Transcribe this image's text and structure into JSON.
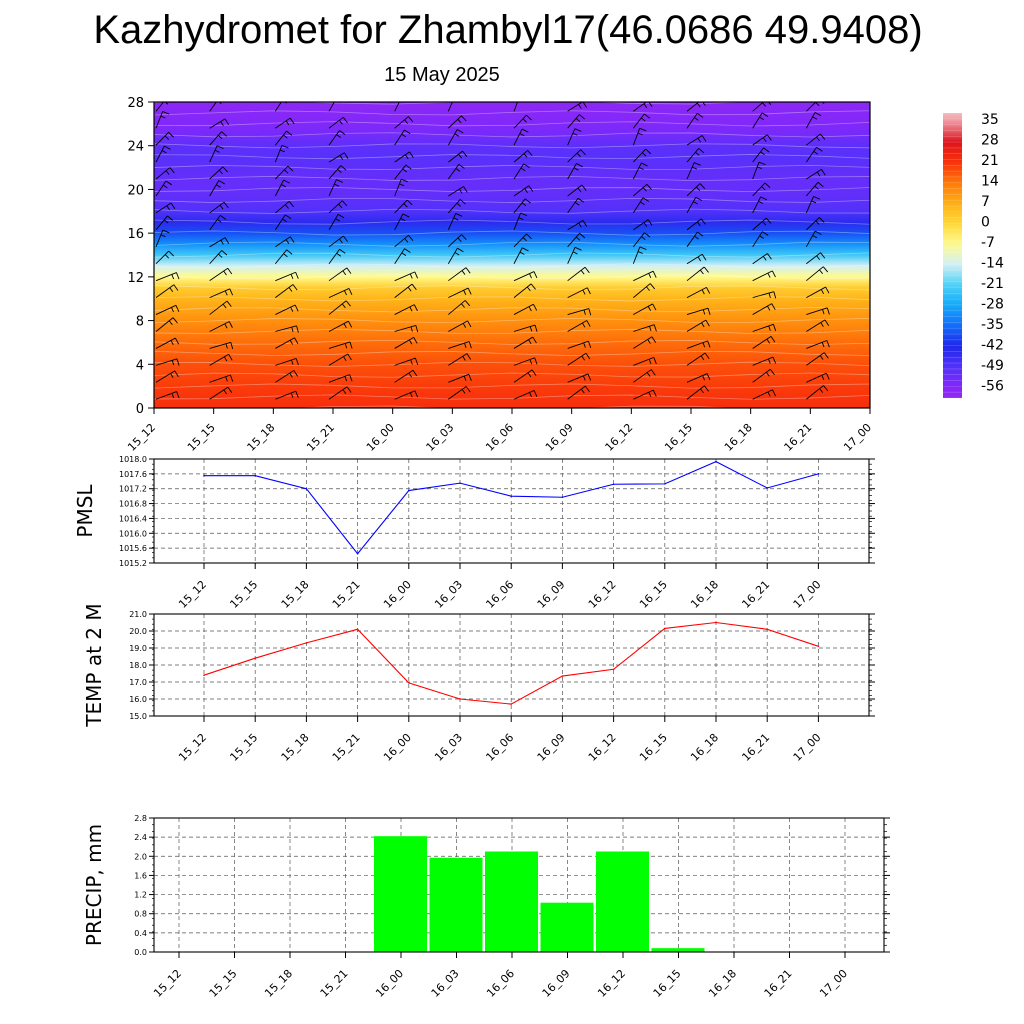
{
  "title": "Kazhydromet for Zhambyl17(46.0686 49.9408)",
  "subtitle": "15 May 2025",
  "time_labels": [
    "15_12",
    "15_15",
    "15_18",
    "15_21",
    "16_00",
    "16_03",
    "16_06",
    "16_09",
    "16_12",
    "16_15",
    "16_18",
    "16_21",
    "17_00"
  ],
  "chart_data": [
    {
      "type": "heatmap",
      "description_panel": "cross-section",
      "x": [
        "15_12",
        "15_15",
        "15_18",
        "15_21",
        "16_00",
        "16_03",
        "16_06",
        "16_09",
        "16_12",
        "16_15",
        "16_18",
        "16_21",
        "17_00"
      ],
      "y_ticks": [
        0,
        4,
        8,
        12,
        16,
        20,
        24,
        28
      ],
      "ylim": [
        0,
        28
      ],
      "colorbar_ticks": [
        35,
        28,
        21,
        14,
        7,
        0,
        -7,
        -14,
        -21,
        -28,
        -35,
        -42,
        -49,
        -56
      ],
      "colorbar_range": [
        -60,
        38
      ],
      "level_values": [
        {
          "y": 0,
          "value": 22
        },
        {
          "y": 2,
          "value": 20
        },
        {
          "y": 4,
          "value": 18
        },
        {
          "y": 6,
          "value": 15
        },
        {
          "y": 8,
          "value": 11
        },
        {
          "y": 10,
          "value": 6
        },
        {
          "y": 11,
          "value": 2
        },
        {
          "y": 12,
          "value": -7
        },
        {
          "y": 13,
          "value": -14
        },
        {
          "y": 14,
          "value": -23
        },
        {
          "y": 15,
          "value": -31
        },
        {
          "y": 16,
          "value": -38
        },
        {
          "y": 17,
          "value": -44
        },
        {
          "y": 18,
          "value": -49
        },
        {
          "y": 19,
          "value": -51
        },
        {
          "y": 20,
          "value": -52
        },
        {
          "y": 21,
          "value": -52
        },
        {
          "y": 22,
          "value": -51
        },
        {
          "y": 23,
          "value": -50
        },
        {
          "y": 24,
          "value": -51
        },
        {
          "y": 25,
          "value": -54
        },
        {
          "y": 26,
          "value": -56
        },
        {
          "y": 27,
          "value": -57
        },
        {
          "y": 28,
          "value": -58
        }
      ],
      "grid": true
    },
    {
      "type": "line",
      "ylabel": "PMSL",
      "x": [
        "15_12",
        "15_15",
        "15_18",
        "15_21",
        "16_00",
        "16_03",
        "16_06",
        "16_09",
        "16_12",
        "16_15",
        "16_18",
        "16_21",
        "17_00"
      ],
      "y_ticks": [
        1015.2,
        1015.6,
        1016.0,
        1016.4,
        1016.8,
        1017.2,
        1017.6,
        1018.0
      ],
      "ylim": [
        1015.2,
        1018.0
      ],
      "series": [
        {
          "values": [
            1017.55,
            1017.55,
            1017.2,
            1015.45,
            1017.15,
            1017.35,
            1017.0,
            1016.97,
            1017.32,
            1017.33,
            1017.93,
            1017.22,
            1017.6
          ],
          "color": "#0000ff"
        }
      ],
      "grid": true
    },
    {
      "type": "line",
      "ylabel": "TEMP at 2 M",
      "x": [
        "15_12",
        "15_15",
        "15_18",
        "15_21",
        "16_00",
        "16_03",
        "16_06",
        "16_09",
        "16_12",
        "16_15",
        "16_18",
        "16_21",
        "17_00"
      ],
      "y_ticks": [
        15.0,
        16.0,
        17.0,
        18.0,
        19.0,
        20.0,
        21.0
      ],
      "ylim": [
        15.0,
        21.0
      ],
      "series": [
        {
          "values": [
            17.4,
            18.4,
            19.3,
            20.1,
            16.95,
            16.0,
            15.7,
            17.35,
            17.75,
            20.15,
            20.5,
            20.1,
            19.1
          ],
          "color": "#ff0000"
        }
      ],
      "grid": true
    },
    {
      "type": "bar",
      "ylabel": "PRECIP, mm",
      "categories": [
        "15_12",
        "15_15",
        "15_18",
        "15_21",
        "16_00",
        "16_03",
        "16_06",
        "16_09",
        "16_12",
        "16_15",
        "16_18",
        "16_21",
        "17_00"
      ],
      "values": [
        0,
        0,
        0,
        0,
        2.42,
        1.97,
        2.1,
        1.03,
        2.1,
        0.08,
        0,
        0,
        0
      ],
      "y_ticks": [
        0.0,
        0.4,
        0.8,
        1.2,
        1.6,
        2.0,
        2.4,
        2.8
      ],
      "ylim": [
        0.0,
        2.8
      ],
      "color": "#00ff00",
      "grid": true
    }
  ]
}
